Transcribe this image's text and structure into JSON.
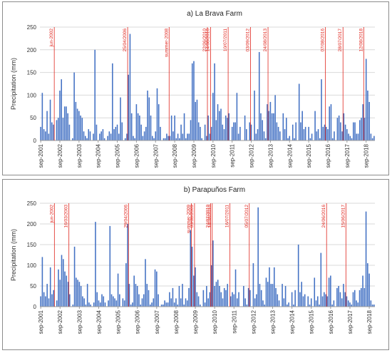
{
  "chart_data": [
    {
      "type": "bar",
      "title": "a) La Brava Farm",
      "ylabel": "Precipitation (mm)",
      "xlabel": "",
      "ylim": [
        0,
        250
      ],
      "yticks": [
        0,
        50,
        100,
        150,
        200,
        250
      ],
      "x_tick_labels": [
        "sep-2001",
        "sep-2002",
        "sep-2003",
        "sep-2004",
        "sep-2005",
        "sep-2006",
        "sep-2007",
        "sep-2008",
        "sep-2009",
        "sep-2010",
        "sep-2011",
        "sep-2012",
        "sep-2013",
        "sep-2014",
        "sep-2015",
        "sep-2016",
        "sep-2017",
        "sep-2018"
      ],
      "grid": "horizontal",
      "bar_color": "#4472c4",
      "event_color": "#e0261e",
      "start_month": "sep-2001",
      "values": [
        30,
        105,
        25,
        20,
        65,
        15,
        90,
        40,
        35,
        0,
        45,
        50,
        110,
        135,
        50,
        75,
        75,
        60,
        35,
        0,
        5,
        150,
        85,
        70,
        65,
        55,
        50,
        20,
        10,
        5,
        25,
        20,
        0,
        15,
        200,
        35,
        0,
        15,
        20,
        25,
        5,
        0,
        10,
        20,
        15,
        170,
        25,
        30,
        35,
        15,
        95,
        40,
        0,
        5,
        15,
        145,
        235,
        60,
        10,
        5,
        80,
        60,
        55,
        35,
        10,
        20,
        30,
        110,
        95,
        55,
        10,
        5,
        20,
        115,
        80,
        30,
        0,
        5,
        5,
        15,
        10,
        10,
        55,
        20,
        55,
        5,
        15,
        5,
        35,
        15,
        60,
        5,
        15,
        15,
        45,
        170,
        175,
        85,
        90,
        40,
        30,
        5,
        0,
        35,
        10,
        55,
        15,
        30,
        105,
        170,
        45,
        80,
        65,
        70,
        35,
        25,
        55,
        50,
        60,
        0,
        30,
        40,
        40,
        105,
        15,
        30,
        0,
        0,
        55,
        25,
        0,
        40,
        35,
        0,
        110,
        15,
        25,
        195,
        60,
        45,
        20,
        5,
        80,
        65,
        85,
        60,
        60,
        100,
        40,
        30,
        20,
        0,
        60,
        25,
        50,
        5,
        10,
        0,
        35,
        5,
        40,
        0,
        125,
        40,
        65,
        25,
        30,
        0,
        30,
        5,
        15,
        0,
        65,
        20,
        25,
        5,
        135,
        30,
        35,
        30,
        25,
        75,
        80,
        5,
        20,
        0,
        50,
        55,
        40,
        20,
        60,
        35,
        25,
        15,
        10,
        5,
        40,
        40,
        15,
        15,
        45,
        50,
        80,
        50,
        180,
        110,
        85,
        15,
        5,
        10
      ],
      "events": [
        {
          "label": "jun-2002",
          "index": 9
        },
        {
          "label": "25/04/2006",
          "index": 55
        },
        {
          "label": "summer-2008",
          "index": 81
        },
        {
          "label": "22/06/2010",
          "index": 105
        },
        {
          "label": "14/08/2010",
          "index": 107
        },
        {
          "label": "10/07/2011",
          "index": 118
        },
        {
          "label": "03/09/2012",
          "index": 132
        },
        {
          "label": "24/08/2013",
          "index": 143
        },
        {
          "label": "07/08/2016",
          "index": 179
        },
        {
          "label": "28/07/2017",
          "index": 190
        },
        {
          "label": "12/08/2018",
          "index": 203
        }
      ]
    },
    {
      "type": "bar",
      "title": "b) Parapuños Farm",
      "ylabel": "Precipitation (mm)",
      "xlabel": "",
      "ylim": [
        0,
        250
      ],
      "yticks": [
        0,
        50,
        100,
        150,
        200,
        250
      ],
      "x_tick_labels": [
        "sep-2001",
        "sep-2002",
        "sep-2003",
        "sep-2004",
        "sep-2005",
        "sep-2006",
        "sep-2007",
        "sep-2008",
        "sep-2009",
        "sep-2010",
        "sep-2011",
        "sep-2012",
        "sep-2013",
        "sep-2014",
        "sep-2015",
        "sep-2016",
        "sep-2017",
        "sep-2018"
      ],
      "grid": "horizontal",
      "bar_color": "#4472c4",
      "event_color": "#e0261e",
      "start_month": "sep-2001",
      "values": [
        25,
        120,
        35,
        25,
        55,
        20,
        95,
        30,
        40,
        0,
        15,
        90,
        65,
        125,
        115,
        85,
        75,
        60,
        30,
        0,
        5,
        145,
        70,
        65,
        60,
        50,
        25,
        20,
        5,
        55,
        10,
        5,
        0,
        10,
        205,
        35,
        15,
        10,
        30,
        25,
        10,
        0,
        15,
        195,
        30,
        25,
        20,
        15,
        80,
        30,
        0,
        20,
        15,
        105,
        200,
        55,
        5,
        10,
        75,
        55,
        50,
        30,
        5,
        20,
        30,
        115,
        55,
        40,
        5,
        10,
        20,
        90,
        85,
        30,
        0,
        5,
        5,
        15,
        10,
        10,
        35,
        20,
        45,
        10,
        20,
        5,
        50,
        20,
        55,
        5,
        20,
        15,
        45,
        185,
        145,
        75,
        95,
        35,
        25,
        5,
        0,
        40,
        10,
        50,
        20,
        35,
        100,
        160,
        50,
        60,
        65,
        50,
        35,
        20,
        45,
        40,
        55,
        0,
        25,
        35,
        30,
        90,
        20,
        35,
        0,
        0,
        50,
        20,
        5,
        45,
        40,
        0,
        105,
        20,
        30,
        240,
        55,
        40,
        15,
        5,
        70,
        60,
        95,
        55,
        55,
        95,
        45,
        30,
        15,
        0,
        55,
        20,
        50,
        5,
        10,
        0,
        35,
        5,
        40,
        0,
        150,
        35,
        60,
        25,
        30,
        0,
        25,
        5,
        20,
        0,
        70,
        15,
        25,
        5,
        130,
        25,
        35,
        30,
        25,
        70,
        75,
        5,
        15,
        0,
        45,
        50,
        35,
        20,
        55,
        35,
        25,
        15,
        10,
        5,
        35,
        40,
        15,
        10,
        40,
        45,
        75,
        45,
        230,
        105,
        80,
        15,
        5,
        5
      ],
      "events": [
        {
          "label": "jun-2002",
          "index": 9
        },
        {
          "label": "16/03/2003",
          "index": 18
        },
        {
          "label": "29/04/2006",
          "index": 55
        },
        {
          "label": "summer-2009",
          "index": 94
        },
        {
          "label": "03/08/2009",
          "index": 96
        },
        {
          "label": "24/07/2010",
          "index": 106
        },
        {
          "label": "14/08/2010",
          "index": 107
        },
        {
          "label": "16/07/2011",
          "index": 118
        },
        {
          "label": "05/07/2012",
          "index": 130
        },
        {
          "label": "24/06/2016",
          "index": 178
        },
        {
          "label": "15/06/2017",
          "index": 190
        }
      ]
    }
  ]
}
